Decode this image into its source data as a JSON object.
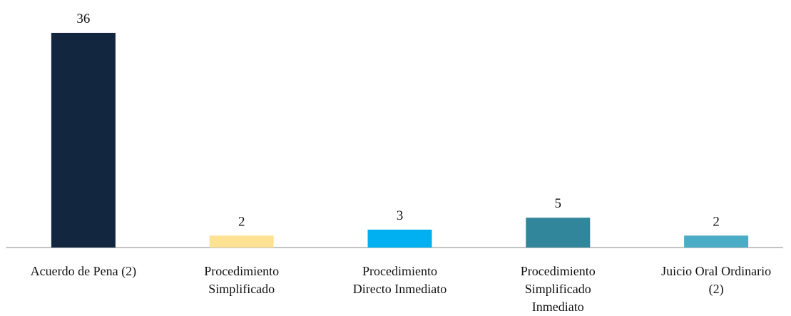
{
  "chart_data": {
    "type": "bar",
    "categories": [
      "Acuerdo de Pena (2)",
      "Procedimiento\nSimplificado",
      "Procedimiento\nDirecto Inmediato",
      "Procedimiento\nSimplificado\nInmediato",
      "Juicio Oral Ordinario\n(2)"
    ],
    "values": [
      36,
      2,
      3,
      5,
      2
    ],
    "colors": [
      "#13263f",
      "#fde293",
      "#00b0f0",
      "#31869b",
      "#4bacc6"
    ]
  }
}
